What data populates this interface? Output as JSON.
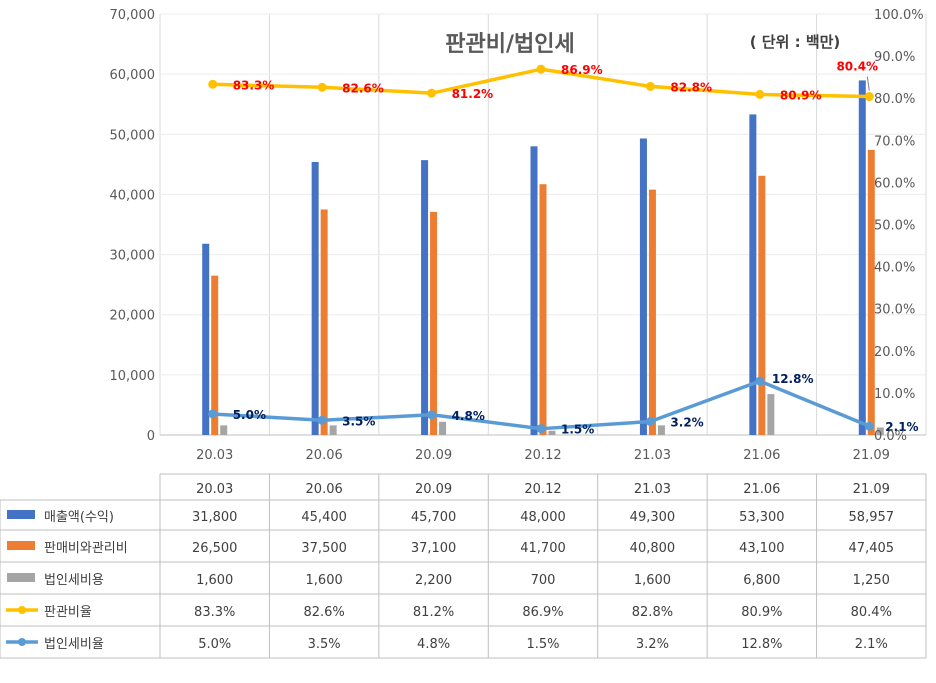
{
  "chart_data": {
    "type": "bar",
    "title": "판관비/법인세",
    "unit_note": "( 단위 : 백만)",
    "categories": [
      "20.03",
      "20.06",
      "20.09",
      "20.12",
      "21.03",
      "21.06",
      "21.09"
    ],
    "y_left": {
      "min": 0,
      "max": 70000,
      "ticks": [
        "0",
        "10,000",
        "20,000",
        "30,000",
        "40,000",
        "50,000",
        "60,000",
        "70,000"
      ]
    },
    "y_right": {
      "min": 0,
      "max": 100,
      "ticks": [
        "0.0%",
        "10.0%",
        "20.0%",
        "30.0%",
        "40.0%",
        "50.0%",
        "60.0%",
        "70.0%",
        "80.0%",
        "90.0%",
        "100.0%"
      ]
    },
    "bar_series": [
      {
        "name": "매출액(수익)",
        "color": "#4472c4",
        "values": [
          31800,
          45400,
          45700,
          48000,
          49300,
          53300,
          58957
        ],
        "labels": [
          "31,800",
          "45,400",
          "45,700",
          "48,000",
          "49,300",
          "53,300",
          "58,957"
        ]
      },
      {
        "name": "판매비와관리비",
        "color": "#ed7d31",
        "values": [
          26500,
          37500,
          37100,
          41700,
          40800,
          43100,
          47405
        ],
        "labels": [
          "26,500",
          "37,500",
          "37,100",
          "41,700",
          "40,800",
          "43,100",
          "47,405"
        ]
      },
      {
        "name": "법인세비용",
        "color": "#a5a5a5",
        "values": [
          1600,
          1600,
          2200,
          700,
          1600,
          6800,
          1250
        ],
        "labels": [
          "1,600",
          "1,600",
          "2,200",
          "700",
          "1,600",
          "6,800",
          "1,250"
        ]
      }
    ],
    "line_series": [
      {
        "name": "판관비율",
        "color": "#ffc000",
        "values": [
          83.3,
          82.6,
          81.2,
          86.9,
          82.8,
          80.9,
          80.4
        ],
        "labels": [
          "83.3%",
          "82.6%",
          "81.2%",
          "86.9%",
          "82.8%",
          "80.9%",
          "80.4%"
        ]
      },
      {
        "name": "법인세비율",
        "color": "#5b9bd5",
        "values": [
          5.0,
          3.5,
          4.8,
          1.5,
          3.2,
          12.8,
          2.1
        ],
        "labels": [
          "5.0%",
          "3.5%",
          "4.8%",
          "1.5%",
          "3.2%",
          "12.8%",
          "2.1%"
        ]
      }
    ]
  }
}
